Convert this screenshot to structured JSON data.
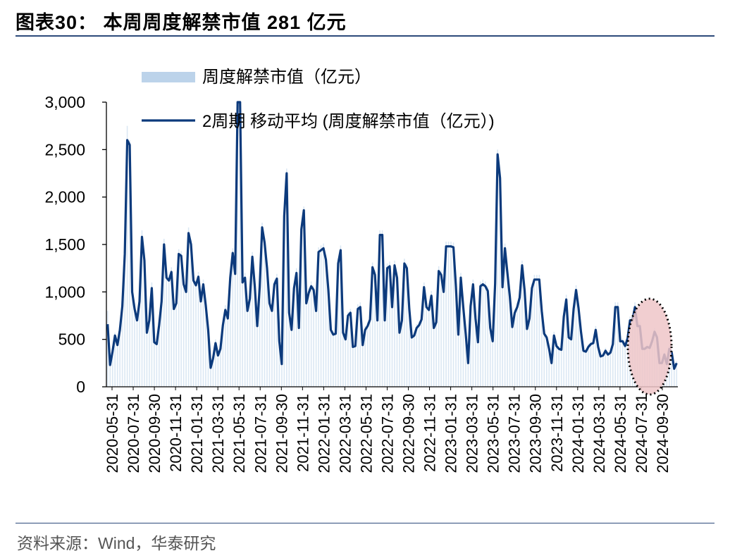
{
  "header": {
    "title": "图表30：  本周周度解禁市值 281 亿元"
  },
  "footer": {
    "source": "资料来源：Wind，华泰研究"
  },
  "colors": {
    "bars": "#bcd3ea",
    "line": "#0c3a7c",
    "highlight_fill": "#eec5c8",
    "rule": "#2d4a7a"
  },
  "chart_data": {
    "type": "bar",
    "title": "本周周度解禁市值 281 亿元",
    "xlabel": "",
    "ylabel": "",
    "ylim": [
      0,
      3000
    ],
    "yticks": [
      0,
      500,
      1000,
      1500,
      2000,
      2500,
      3000
    ],
    "ytick_labels": [
      "0",
      "500",
      "1,000",
      "1,500",
      "2,000",
      "2,500",
      "3,000"
    ],
    "xtick_labels": [
      "2020-05-31",
      "2020-07-31",
      "2020-09-30",
      "2020-11-31",
      "2021-01-31",
      "2021-03-31",
      "2021-05-31",
      "2021-07-31",
      "2021-09-30",
      "2021-11-31",
      "2022-01-31",
      "2022-03-31",
      "2022-05-31",
      "2022-07-31",
      "2022-09-30",
      "2022-11-31",
      "2023-01-31",
      "2023-03-31",
      "2023-05-31",
      "2023-07-31",
      "2023-09-30",
      "2023-11-31",
      "2024-01-31",
      "2024-03-31",
      "2024-05-31",
      "2024-07-31",
      "2024-09-30"
    ],
    "legend": [
      {
        "name": "周度解禁市值（亿元）",
        "kind": "bar"
      },
      {
        "name": "2周期 移动平均 (周度解禁市值（亿元）)",
        "kind": "line"
      }
    ],
    "series": [
      {
        "name": "2周期 移动平均 (周度解禁市值（亿元）)",
        "values": [
          660,
          230,
          370,
          540,
          440,
          600,
          850,
          1400,
          2600,
          2550,
          1000,
          820,
          700,
          900,
          1580,
          1330,
          570,
          700,
          1040,
          470,
          450,
          650,
          900,
          1500,
          1150,
          1120,
          1210,
          820,
          880,
          1400,
          1380,
          1080,
          1000,
          1620,
          1500,
          1120,
          1070,
          1160,
          900,
          1080,
          860,
          600,
          200,
          300,
          460,
          330,
          400,
          650,
          810,
          720,
          1150,
          1410,
          1190,
          3100,
          3100,
          1100,
          1150,
          800,
          930,
          1370,
          1060,
          640,
          1050,
          1680,
          1520,
          1250,
          880,
          800,
          1080,
          1140,
          480,
          240,
          1800,
          2250,
          780,
          600,
          1040,
          1200,
          620,
          1660,
          1860,
          880,
          990,
          1060,
          1020,
          800,
          1420,
          1440,
          1460,
          1340,
          1020,
          600,
          550,
          560,
          1300,
          1440,
          570,
          500,
          750,
          780,
          420,
          430,
          820,
          840,
          440,
          600,
          640,
          710,
          1260,
          1180,
          700,
          1600,
          1600,
          700,
          1250,
          1270,
          840,
          1280,
          1150,
          570,
          700,
          1300,
          1250,
          820,
          520,
          540,
          620,
          650,
          710,
          1050,
          840,
          810,
          960,
          620,
          680,
          1220,
          1180,
          1000,
          1480,
          1480,
          1480,
          1470,
          1060,
          550,
          1150,
          840,
          560,
          250,
          850,
          1080,
          720,
          470,
          1060,
          1080,
          1060,
          1010,
          620,
          480,
          1090,
          2450,
          2200,
          1050,
          1460,
          1200,
          950,
          630,
          780,
          840,
          940,
          1280,
          1020,
          610,
          720,
          1040,
          1130,
          1130,
          1130,
          800,
          560,
          520,
          400,
          250,
          540,
          430,
          400,
          390,
          740,
          920,
          520,
          500,
          820,
          1020,
          830,
          580,
          380,
          370,
          420,
          450,
          460,
          600,
          420,
          320,
          330,
          380,
          340,
          360,
          450,
          840,
          840,
          480,
          480,
          430,
          510,
          700,
          700,
          840,
          640,
          640,
          400,
          400,
          420,
          410,
          480,
          580,
          520,
          250,
          250,
          340,
          240,
          400,
          360,
          190,
          250
        ]
      }
    ],
    "bars_values": [
      800,
      330,
      430,
      570,
      470,
      640,
      900,
      1450,
      2750,
      2600,
      1050,
      880,
      740,
      960,
      1650,
      1400,
      600,
      760,
      1100,
      500,
      480,
      690,
      960,
      1560,
      1200,
      1180,
      1260,
      880,
      930,
      1450,
      1430,
      1130,
      1050,
      1680,
      1550,
      1170,
      1120,
      1210,
      960,
      1130,
      910,
      650,
      220,
      320,
      500,
      360,
      430,
      700,
      860,
      770,
      1200,
      1460,
      1240,
      3100,
      3100,
      1150,
      1200,
      850,
      980,
      1420,
      1110,
      690,
      1100,
      1730,
      1570,
      1300,
      930,
      850,
      1130,
      1190,
      520,
      270,
      1850,
      2300,
      830,
      640,
      1090,
      1250,
      660,
      1710,
      1900,
      930,
      1040,
      1110,
      1070,
      850,
      1470,
      1490,
      1510,
      1390,
      1070,
      640,
      590,
      600,
      1350,
      1490,
      610,
      540,
      790,
      820,
      450,
      460,
      870,
      890,
      470,
      640,
      680,
      750,
      1310,
      1230,
      740,
      1650,
      1650,
      740,
      1300,
      1320,
      890,
      1330,
      1200,
      610,
      740,
      1350,
      1300,
      870,
      550,
      570,
      660,
      690,
      750,
      1100,
      890,
      860,
      1010,
      660,
      720,
      1270,
      1230,
      1050,
      1530,
      1530,
      1530,
      1520,
      1110,
      590,
      1200,
      890,
      600,
      280,
      900,
      1130,
      760,
      500,
      1110,
      1130,
      1110,
      1060,
      660,
      510,
      1140,
      2500,
      2250,
      1100,
      1510,
      1250,
      1000,
      670,
      820,
      890,
      990,
      1330,
      1070,
      650,
      760,
      1090,
      1180,
      1180,
      1180,
      850,
      600,
      550,
      430,
      270,
      580,
      460,
      430,
      420,
      780,
      970,
      550,
      530,
      870,
      1070,
      880,
      620,
      410,
      400,
      450,
      480,
      490,
      640,
      450,
      340,
      350,
      410,
      360,
      380,
      480,
      890,
      890,
      510,
      510,
      460,
      540,
      740,
      740,
      890,
      680,
      680,
      430,
      430,
      450,
      440,
      510,
      620,
      550,
      270,
      270,
      360,
      260,
      430,
      380,
      210,
      270
    ],
    "annotation": {
      "shape": "dotted-ellipse",
      "label": ""
    }
  }
}
